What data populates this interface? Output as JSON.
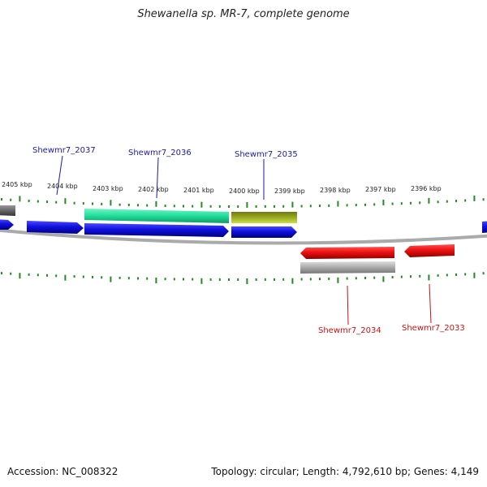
{
  "title": "Shewanella sp. MR-7, complete genome",
  "footer": {
    "accession": "Accession: NC_008322",
    "summary": "Topology: circular; Length: 4,792,610 bp; Genes: 4,149"
  },
  "colors": {
    "forward_cds": "#1010e0",
    "reverse_cds": "#ee1010",
    "teal_feature": "#20dd99",
    "olive_feature": "#8a9a20",
    "gray_feature": "#aaaaaa",
    "backbone": "#888888",
    "ticks": "#228b22",
    "label_forward": "#1a1aaa",
    "label_reverse": "#cc1111"
  },
  "ruler": {
    "unit": "kbp",
    "labels": [
      "2405 kbp",
      "2404 kbp",
      "2403 kbp",
      "2402 kbp",
      "2401 kbp",
      "2400 kbp",
      "2399 kbp",
      "2398 kbp",
      "2397 kbp",
      "2396 kbp"
    ]
  },
  "gene_labels": {
    "forward": [
      "Shewmr7_2037",
      "Shewmr7_2036",
      "Shewmr7_2035"
    ],
    "reverse": [
      "Shewmr7_2034",
      "Shewmr7_2033"
    ]
  }
}
